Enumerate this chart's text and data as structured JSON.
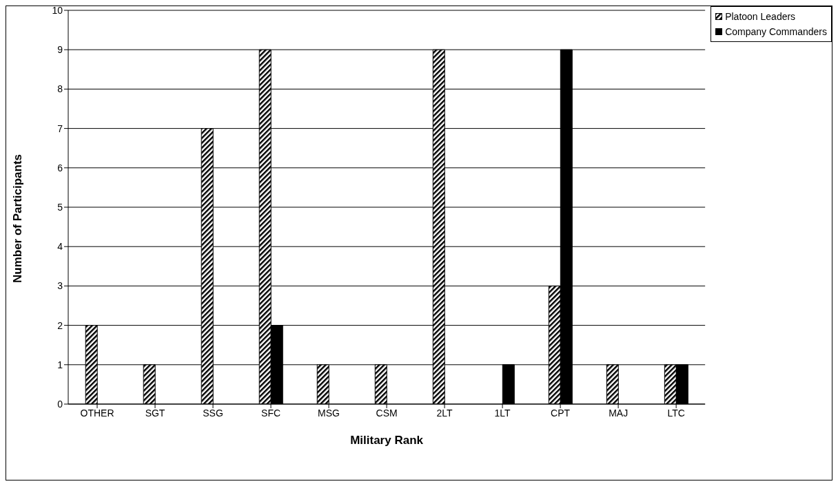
{
  "chart_data": {
    "type": "bar",
    "xlabel": "Military Rank",
    "ylabel": "Number of Participants",
    "categories": [
      "OTHER",
      "SGT",
      "SSG",
      "SFC",
      "MSG",
      "CSM",
      "2LT",
      "1LT",
      "CPT",
      "MAJ",
      "LTC"
    ],
    "series": [
      {
        "name": "Platoon Leaders",
        "color": "#000000",
        "values": [
          2,
          1,
          7,
          9,
          1,
          1,
          9,
          0,
          3,
          1,
          1
        ]
      },
      {
        "name": "Company Commanders",
        "color": "#000000",
        "values": [
          0,
          0,
          0,
          2,
          0,
          0,
          0,
          1,
          9,
          0,
          1
        ]
      }
    ],
    "ylim": [
      0,
      10
    ],
    "yticks": [
      0,
      1,
      2,
      3,
      4,
      5,
      6,
      7,
      8,
      9,
      10
    ],
    "grid": "y",
    "legend": "top right"
  }
}
